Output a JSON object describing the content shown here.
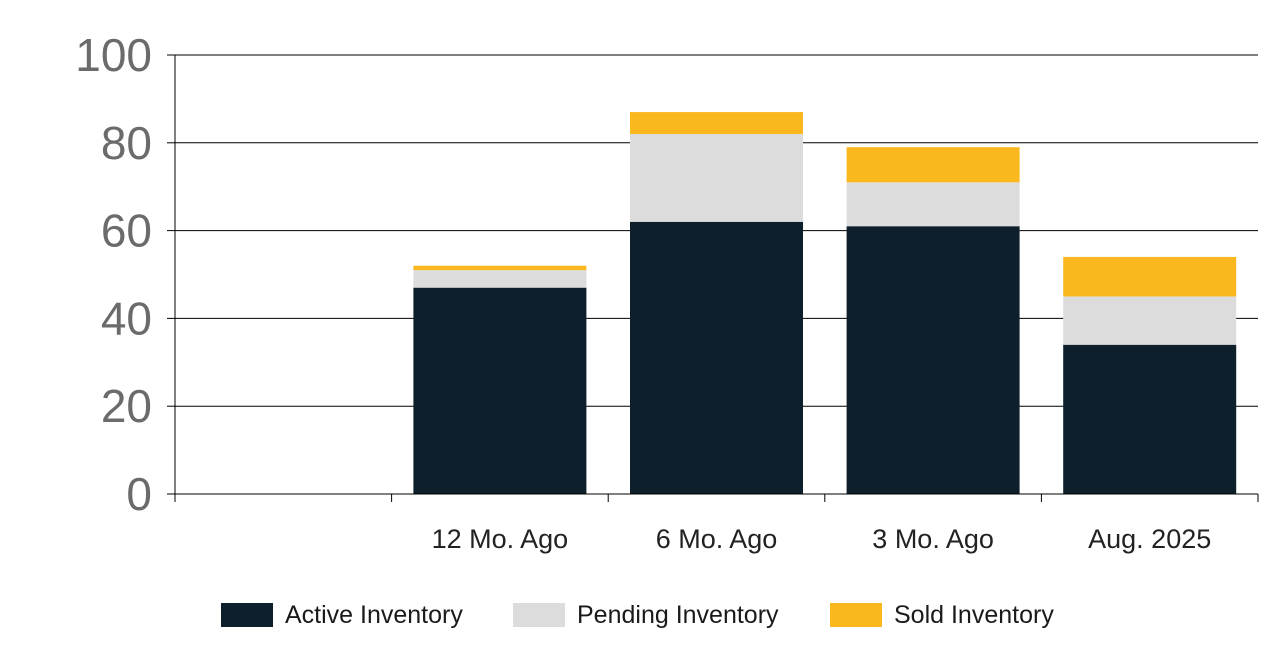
{
  "chart_data": {
    "type": "bar",
    "stacked": true,
    "title": "",
    "xlabel": "",
    "ylabel": "",
    "ylim": [
      0,
      100
    ],
    "yticks": [
      0,
      20,
      40,
      60,
      80,
      100
    ],
    "grid": true,
    "legend_position": "bottom",
    "categories": [
      "12 Mo. Ago",
      "6 Mo. Ago",
      "3 Mo. Ago",
      "Aug. 2025"
    ],
    "series": [
      {
        "name": "Active Inventory",
        "color": "#0d1f2a",
        "values": [
          47,
          62,
          61,
          34
        ]
      },
      {
        "name": "Pending Inventory",
        "color": "#dcdcdc",
        "values": [
          4,
          20,
          10,
          11
        ]
      },
      {
        "name": "Sold Inventory",
        "color": "#fbb71e",
        "values": [
          1,
          5,
          8,
          9
        ]
      }
    ]
  }
}
